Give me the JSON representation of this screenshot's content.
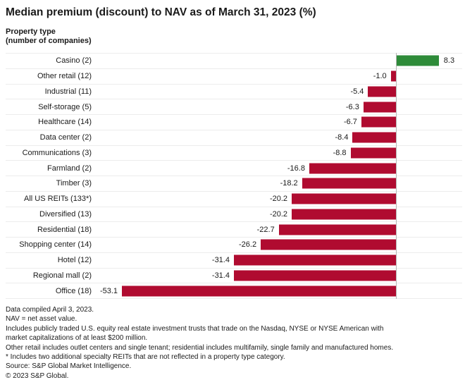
{
  "title": "Median premium (discount) to NAV as of March 31, 2023 (%)",
  "axis_heading": {
    "line1": "Property type",
    "line2": "(number of companies)"
  },
  "chart_data": {
    "type": "bar",
    "orientation": "horizontal",
    "title": "Median premium (discount) to NAV as of March 31, 2023 (%)",
    "xlabel": "",
    "ylabel": "Property type (number of companies)",
    "xlim": [
      -57.6,
      12.8
    ],
    "grid": "horizontal-row-separators",
    "legend": "none",
    "zero_axis_line": true,
    "categories": [
      "Casino (2)",
      "Other retail (12)",
      "Industrial (11)",
      "Self-storage (5)",
      "Healthcare (14)",
      "Data center (2)",
      "Communications (3)",
      "Farmland (2)",
      "Timber (3)",
      "All US REITs (133*)",
      "Diversified (13)",
      "Residential (18)",
      "Shopping center (14)",
      "Hotel (12)",
      "Regional mall (2)",
      "Office (18)"
    ],
    "values": [
      8.3,
      -1.0,
      -5.4,
      -6.3,
      -6.7,
      -8.4,
      -8.8,
      -16.8,
      -18.2,
      -20.2,
      -20.2,
      -22.7,
      -26.2,
      -31.4,
      -31.4,
      -53.1
    ],
    "points": [
      {
        "category": "Casino (2)",
        "value": 8.3,
        "label": "8.3"
      },
      {
        "category": "Other retail (12)",
        "value": -1.0,
        "label": "-1.0"
      },
      {
        "category": "Industrial (11)",
        "value": -5.4,
        "label": "-5.4"
      },
      {
        "category": "Self-storage (5)",
        "value": -6.3,
        "label": "-6.3"
      },
      {
        "category": "Healthcare (14)",
        "value": -6.7,
        "label": "-6.7"
      },
      {
        "category": "Data center (2)",
        "value": -8.4,
        "label": "-8.4"
      },
      {
        "category": "Communications (3)",
        "value": -8.8,
        "label": "-8.8"
      },
      {
        "category": "Farmland (2)",
        "value": -16.8,
        "label": "-16.8"
      },
      {
        "category": "Timber (3)",
        "value": -18.2,
        "label": "-18.2"
      },
      {
        "category": "All US REITs (133*)",
        "value": -20.2,
        "label": "-20.2"
      },
      {
        "category": "Diversified (13)",
        "value": -20.2,
        "label": "-20.2"
      },
      {
        "category": "Residential (18)",
        "value": -22.7,
        "label": "-22.7"
      },
      {
        "category": "Shopping center (14)",
        "value": -26.2,
        "label": "-26.2"
      },
      {
        "category": "Hotel (12)",
        "value": -31.4,
        "label": "-31.4"
      },
      {
        "category": "Regional mall (2)",
        "value": -31.4,
        "label": "-31.4"
      },
      {
        "category": "Office (18)",
        "value": -53.1,
        "label": "-53.1"
      }
    ],
    "colors": {
      "positive": "#2e8b39",
      "negative": "#b00b30",
      "zero_line": "#b5b5b5",
      "row_separator": "#ececec",
      "text": "#1a1a1a"
    }
  },
  "footnotes": [
    "Data compiled April 3, 2023.",
    "NAV = net asset value.",
    "Includes publicly traded U.S. equity real estate investment trusts that trade on the Nasdaq, NYSE or NYSE American with",
    "market capitalizations of at least $200 million.",
    "Other retail includes outlet centers and single tenant; residential includes multifamily, single family and manufactured homes.",
    "* Includes two additional specialty REITs that are not reflected in a property type category.",
    "Source: S&P Global Market Intelligence.",
    "© 2023 S&P Global."
  ]
}
